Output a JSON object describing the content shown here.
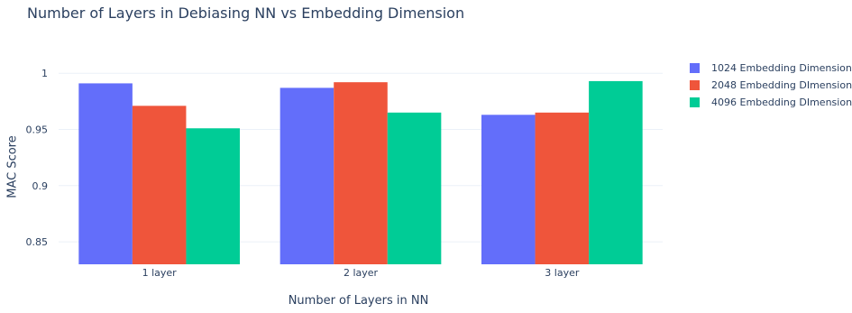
{
  "chart_data": {
    "type": "bar",
    "title": "Number of Layers in Debiasing NN vs Embedding Dimension",
    "xlabel": "Number of Layers in NN",
    "ylabel": "MAC Score",
    "categories": [
      "1 layer",
      "2 layer",
      "3 layer"
    ],
    "series": [
      {
        "name": "1024 Embedding Dimension",
        "color": "#636efa",
        "values": [
          0.991,
          0.987,
          0.963
        ]
      },
      {
        "name": "2048 Embedding DImension",
        "color": "#ef553b",
        "values": [
          0.971,
          0.992,
          0.965
        ]
      },
      {
        "name": "4096 Embedding DImension",
        "color": "#00cc96",
        "values": [
          0.951,
          0.965,
          0.993
        ]
      }
    ],
    "ylim": [
      0.83,
      1.013
    ],
    "yticks": [
      0.85,
      0.9,
      0.95,
      1
    ],
    "ytick_labels": [
      "0.85",
      "0.9",
      "0.95",
      "1"
    ],
    "grid": true,
    "legend_position": "top-right"
  }
}
